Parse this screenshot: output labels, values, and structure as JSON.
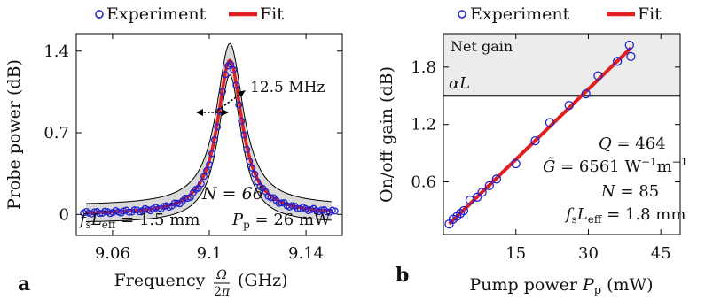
{
  "panels": {
    "a": {
      "label": "a"
    },
    "b": {
      "label": "b"
    }
  },
  "chart_data": [
    {
      "type": "scatter",
      "panel": "a",
      "title": "",
      "xlabel": "Frequency Ω/2π (GHz)",
      "ylabel": "Probe power (dB)",
      "xlim": [
        9.045,
        9.155
      ],
      "ylim": [
        -0.18,
        1.55
      ],
      "x_ticks": [
        9.06,
        9.1,
        9.14
      ],
      "x_tick_labels": [
        "9.06",
        "9.1",
        "9.14"
      ],
      "y_ticks": [
        0,
        0.7,
        1.4
      ],
      "y_tick_labels": [
        "0",
        "0.7",
        "1.4"
      ],
      "grid": false,
      "legend": {
        "placement": "above",
        "entries": [
          "Experiment",
          "Fit"
        ]
      },
      "colors": {
        "experiment": "#2020d0",
        "fit": "#e02020",
        "band": "#d9d9d9",
        "envelope": "#000000"
      },
      "resonance": {
        "center_ghz": 9.1085,
        "linewidth_ghz": 0.0125,
        "peak_db": 1.32
      },
      "annotations": {
        "linewidth": "12.5 MHz",
        "N": "N = 66",
        "fsLeff": "fsLeff = 1.5 mm",
        "Pp": "Pp = 26 mW"
      },
      "series": [
        {
          "name": "Experiment",
          "kind": "points",
          "x_start": 9.048,
          "x_end": 9.152,
          "n_points": 95
        },
        {
          "name": "Fit",
          "kind": "line",
          "x_start": 9.05,
          "x_end": 9.15
        }
      ]
    },
    {
      "type": "scatter",
      "panel": "b",
      "title": "",
      "xlabel": "Pump power Pp (mW)",
      "ylabel": "On/off gain (dB)",
      "xlim": [
        0,
        49
      ],
      "ylim": [
        0.05,
        2.15
      ],
      "x_ticks": [
        15,
        30,
        45
      ],
      "x_tick_labels": [
        "15",
        "30",
        "45"
      ],
      "y_ticks": [
        0.6,
        1.2,
        1.8
      ],
      "y_tick_labels": [
        "0.6",
        "1.2",
        "1.8"
      ],
      "grid": false,
      "legend": {
        "placement": "above",
        "entries": [
          "Experiment",
          "Fit"
        ]
      },
      "colors": {
        "experiment": "#2020d0",
        "fit": "#e02020",
        "net_gain_region": "#ececec"
      },
      "threshold": {
        "label": "αL",
        "y": 1.5
      },
      "region_label": "Net gain",
      "annotations": {
        "Q": "Q = 464",
        "G": "G̃ = 6561 W⁻¹m⁻¹",
        "N": "N = 85",
        "fsLeff": "fsLeff = 1.8 mm"
      },
      "series": [
        {
          "name": "Experiment",
          "x": [
            1.2,
            2.0,
            2.8,
            3.5,
            4.2,
            5.5,
            7.0,
            8.0,
            9.5,
            11.0,
            15.0,
            19.0,
            22.0,
            26.0,
            29.5,
            32.0,
            36.0,
            38.5,
            38.8
          ],
          "y": [
            0.16,
            0.21,
            0.24,
            0.27,
            0.3,
            0.41,
            0.44,
            0.49,
            0.56,
            0.63,
            0.79,
            1.03,
            1.22,
            1.4,
            1.52,
            1.71,
            1.86,
            2.03,
            1.91
          ]
        },
        {
          "name": "Fit",
          "x": [
            1.2,
            38.8
          ],
          "y": [
            0.16,
            2.0
          ]
        }
      ]
    }
  ]
}
